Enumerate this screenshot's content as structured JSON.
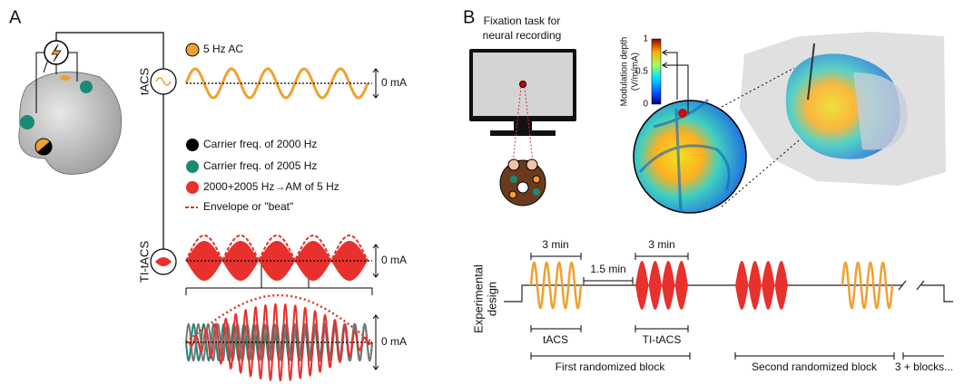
{
  "panel_a": {
    "label": "A",
    "tacs": {
      "label": "tACS",
      "legend": "5 Hz AC",
      "zero": "0 mA"
    },
    "ti": {
      "label": "TI-tACS",
      "legend": [
        "Carrier freq. of 2000 Hz",
        "Carrier freq. of 2005 Hz",
        "2000+2005 Hz→AM of 5 Hz",
        "Envelope or \"beat\""
      ],
      "zero": "0 mA",
      "zoom_zero": "0 mA"
    }
  },
  "panel_b": {
    "label": "B",
    "fixation_title": [
      "Fixation task for",
      "neural recording"
    ],
    "colorbar": {
      "title": [
        "Modulation depth",
        "(V/m/mA)"
      ],
      "ticks": [
        1,
        0.5,
        0
      ]
    },
    "design": {
      "title": [
        "Experimental",
        "design"
      ],
      "durations": [
        "3 min",
        "3 min",
        "1.5 min"
      ],
      "blocks": [
        "tACS",
        "TI-tACS"
      ],
      "groups": [
        "First randomized block",
        "Second randomized block",
        "3 + blocks..."
      ]
    }
  }
}
